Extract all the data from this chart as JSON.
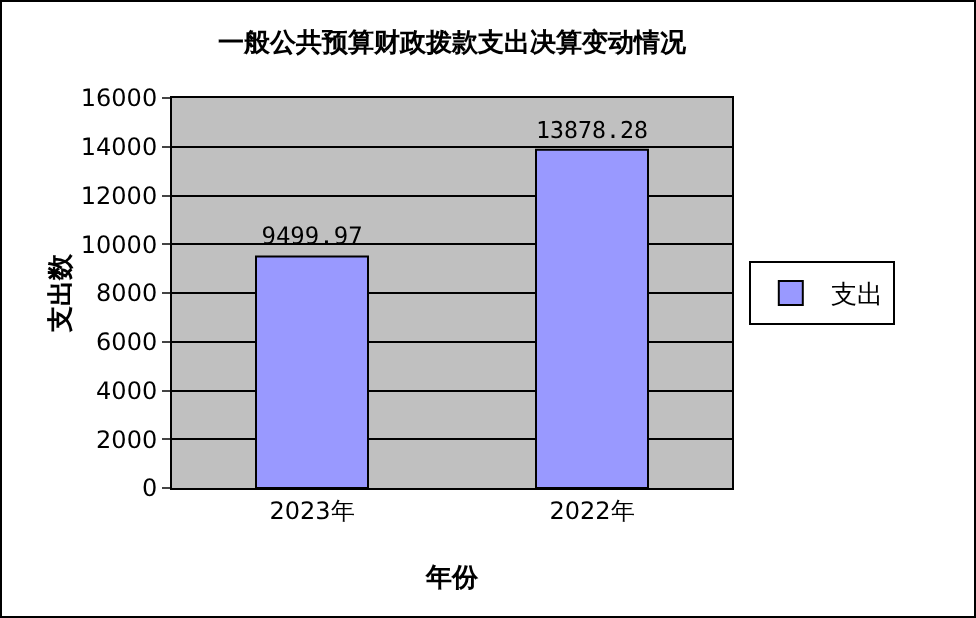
{
  "chart_data": {
    "type": "bar",
    "title": "一般公共预算财政拨款支出决算变动情况",
    "xlabel": "年份",
    "ylabel": "支出数",
    "categories": [
      "2023年",
      "2022年"
    ],
    "series": [
      {
        "name": "支出",
        "color": "#9999ff",
        "values": [
          9499.97,
          13878.28
        ]
      }
    ],
    "ylim": [
      0,
      16000
    ],
    "yticks": [
      0,
      2000,
      4000,
      6000,
      8000,
      10000,
      12000,
      14000,
      16000
    ],
    "grid": "y",
    "legend": "right",
    "data_labels": true
  }
}
